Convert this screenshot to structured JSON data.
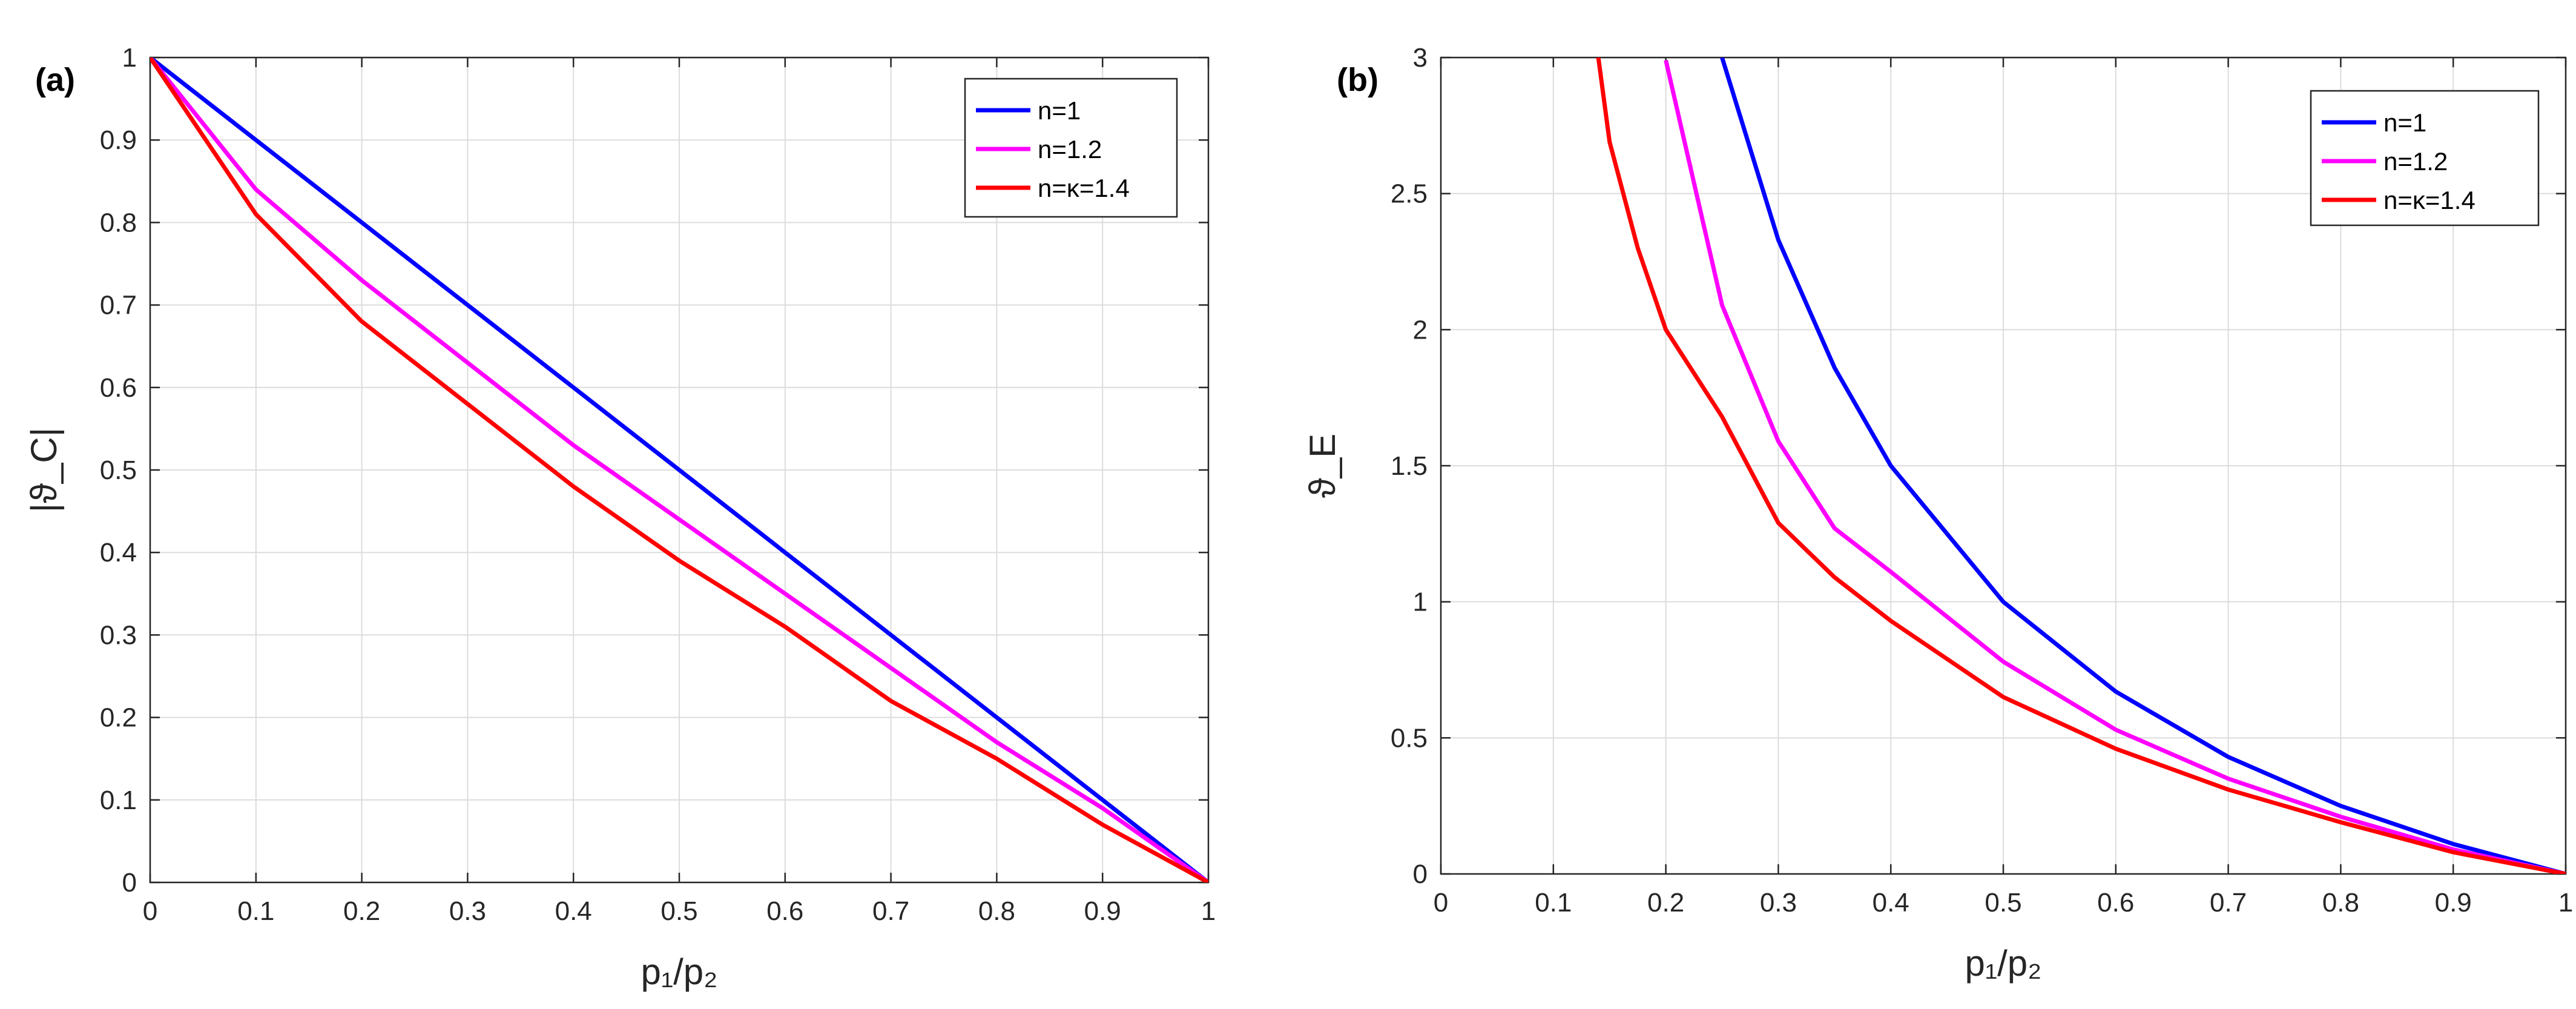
{
  "chart_data": [
    {
      "panel": "(a)",
      "type": "line",
      "xlabel": "p₁/p₂",
      "ylabel": "|ϑ_C|",
      "xlim": [
        0,
        1
      ],
      "ylim": [
        0,
        1
      ],
      "xticks": [
        "0",
        "0.1",
        "0.2",
        "0.3",
        "0.4",
        "0.5",
        "0.6",
        "0.7",
        "0.8",
        "0.9",
        "1"
      ],
      "yticks": [
        "0",
        "0.1",
        "0.2",
        "0.3",
        "0.4",
        "0.5",
        "0.6",
        "0.7",
        "0.8",
        "0.9",
        "1"
      ],
      "grid": true,
      "legend_position": "top-right",
      "x": [
        0,
        0.1,
        0.2,
        0.3,
        0.4,
        0.5,
        0.6,
        0.7,
        0.8,
        0.9,
        1
      ],
      "series": [
        {
          "name": "n=1",
          "color": "#0000ff",
          "values": [
            1,
            0.9,
            0.8,
            0.7,
            0.6,
            0.5,
            0.4,
            0.3,
            0.2,
            0.1,
            0
          ]
        },
        {
          "name": "n=1.2",
          "color": "#ff00ff",
          "values": [
            1,
            0.84,
            0.73,
            0.63,
            0.53,
            0.44,
            0.35,
            0.26,
            0.17,
            0.09,
            0
          ]
        },
        {
          "name": "n=κ=1.4",
          "color": "#ff0000",
          "values": [
            1,
            0.81,
            0.68,
            0.58,
            0.48,
            0.39,
            0.31,
            0.22,
            0.15,
            0.07,
            0
          ]
        }
      ]
    },
    {
      "panel": "(b)",
      "type": "line",
      "xlabel": "p₁/p₂",
      "ylabel": "ϑ_E",
      "xlim": [
        0,
        1
      ],
      "ylim": [
        0,
        3
      ],
      "xticks": [
        "0",
        "0.1",
        "0.2",
        "0.3",
        "0.4",
        "0.5",
        "0.6",
        "0.7",
        "0.8",
        "0.9",
        "1"
      ],
      "yticks": [
        "0",
        "0.5",
        "1",
        "1.5",
        "2",
        "2.5",
        "3"
      ],
      "grid": true,
      "legend_position": "top-right",
      "x": [
        0.14,
        0.15,
        0.175,
        0.2,
        0.25,
        0.3,
        0.35,
        0.4,
        0.5,
        0.6,
        0.7,
        0.8,
        0.9,
        1
      ],
      "series": [
        {
          "name": "n=1",
          "color": "#0000ff",
          "values": [
            null,
            null,
            null,
            null,
            3.0,
            2.33,
            1.86,
            1.5,
            1.0,
            0.67,
            0.43,
            0.25,
            0.11,
            0
          ]
        },
        {
          "name": "n=1.2",
          "color": "#ff00ff",
          "values": [
            null,
            null,
            null,
            2.99,
            2.09,
            1.59,
            1.27,
            1.11,
            0.78,
            0.53,
            0.35,
            0.21,
            0.09,
            0
          ]
        },
        {
          "name": "n=κ=1.4",
          "color": "#ff0000",
          "values": [
            3.0,
            2.69,
            2.3,
            2.0,
            1.68,
            1.29,
            1.09,
            0.93,
            0.65,
            0.46,
            0.31,
            0.19,
            0.08,
            0
          ]
        }
      ]
    }
  ]
}
